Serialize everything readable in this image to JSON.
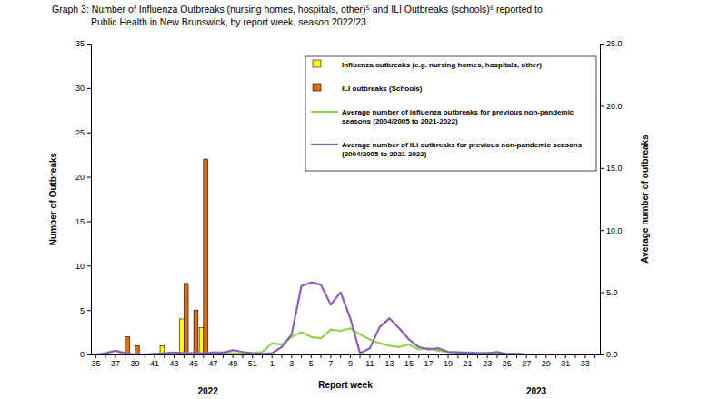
{
  "chart_data": {
    "type": "bar",
    "title": "Graph 3: Number of Influenza Outbreaks (nursing homes, hospitals, other)⁵ and ILI Outbreaks (schools)⁶ reported to Public Health in New Brunswick, by report week, season 2022/23.",
    "x_label": "Report week",
    "y_label": "Number of Outbreaks",
    "y2_label": "Average number of outbreaks",
    "categories": [
      "35",
      null,
      "37",
      null,
      "39",
      null,
      "41",
      null,
      "43",
      null,
      "45",
      null,
      "47",
      null,
      "49",
      null,
      "51",
      null,
      "1",
      null,
      "3",
      null,
      "5",
      null,
      "7",
      null,
      "9",
      null,
      "11",
      null,
      "13",
      null,
      "15",
      null,
      "17",
      null,
      "19",
      null,
      "21",
      null,
      "23",
      null,
      "25",
      null,
      "27",
      null,
      "29",
      null,
      "31",
      null,
      "33",
      null
    ],
    "series": [
      {
        "name": "Influenza outbreaks (e.g. nursing homes, hospitals, other)",
        "type": "bar",
        "color": "#FFFF00",
        "values": [
          0,
          0,
          0,
          0,
          0,
          0,
          0,
          1,
          0,
          4,
          0,
          3,
          0,
          0,
          0,
          0,
          0,
          0,
          0,
          0,
          0,
          0,
          0,
          0,
          0,
          0,
          0,
          0,
          0,
          0,
          0,
          0,
          0,
          0,
          0,
          0,
          0,
          0,
          0,
          0,
          0,
          0,
          0,
          0,
          0,
          0,
          0,
          0,
          0,
          0,
          0,
          0
        ]
      },
      {
        "name": "ILI outbreaks (Schools)",
        "type": "bar",
        "color": "#E46C0A",
        "values": [
          0,
          0,
          0,
          2,
          1,
          0,
          0,
          0,
          0,
          8,
          5,
          22,
          0,
          0,
          0,
          0,
          0,
          0,
          0,
          0,
          0,
          0,
          0,
          0,
          0,
          0,
          0,
          0,
          0,
          0,
          0,
          0,
          0,
          0,
          0,
          0,
          0,
          0,
          0,
          0,
          0,
          0,
          0,
          0,
          0,
          0,
          0,
          0,
          0,
          0,
          0,
          0
        ]
      },
      {
        "name": "Average number of influenza outbreaks for previous non-pandemic seasons (2004/2005 to 2021-2022)",
        "type": "line",
        "axis": "y2",
        "color": "#92D050",
        "values": [
          0,
          0,
          0,
          0.05,
          0,
          0,
          0.05,
          0.05,
          0.1,
          0.1,
          0.1,
          0.05,
          0.05,
          0.1,
          0.1,
          0.05,
          0.1,
          0.2,
          0.9,
          0.8,
          1.4,
          1.8,
          1.4,
          1.3,
          2.0,
          1.9,
          2.1,
          1.6,
          1.2,
          0.9,
          0.7,
          0.6,
          0.8,
          0.4,
          0.5,
          0.3,
          0.2,
          0.2,
          0.1,
          0.1,
          0.1,
          0.1,
          0.05,
          0.05,
          0,
          0,
          0,
          0,
          0,
          0,
          0,
          0
        ]
      },
      {
        "name": "Average number of ILI outbreaks for previous non-pandemic seasons (2004/2005 to 2021-2022)",
        "type": "line",
        "axis": "y2",
        "color": "#8A5FB4",
        "values": [
          0,
          0.1,
          0.3,
          0.1,
          0,
          0,
          0.05,
          0.1,
          0.15,
          0.1,
          0.1,
          0.1,
          0.15,
          0.15,
          0.35,
          0.2,
          0.1,
          0.05,
          0.1,
          0.6,
          1.6,
          5.5,
          5.8,
          5.6,
          4.0,
          5.0,
          2.9,
          0.1,
          0.5,
          2.2,
          2.9,
          2.1,
          1.2,
          0.6,
          0.4,
          0.5,
          0.2,
          0.15,
          0.15,
          0.1,
          0.1,
          0.2,
          0.05,
          0.05,
          0,
          0,
          0,
          0,
          0,
          0,
          0,
          0
        ]
      }
    ],
    "ylim": [
      0,
      35
    ],
    "yticks": [
      0,
      5,
      10,
      15,
      20,
      25,
      30,
      35
    ],
    "y2lim": [
      0,
      25
    ],
    "y2ticks": [
      {
        "value": 0,
        "label": "0.0"
      },
      {
        "value": 5,
        "label": "5.0"
      },
      {
        "value": 10,
        "label": "10.0"
      },
      {
        "value": 15,
        "label": "15.0"
      },
      {
        "value": 20,
        "label": "20.0"
      },
      {
        "value": 25,
        "label": "25.0"
      }
    ],
    "annotations": [
      "2022",
      "2023"
    ],
    "legend": "top-right",
    "grid": false
  }
}
